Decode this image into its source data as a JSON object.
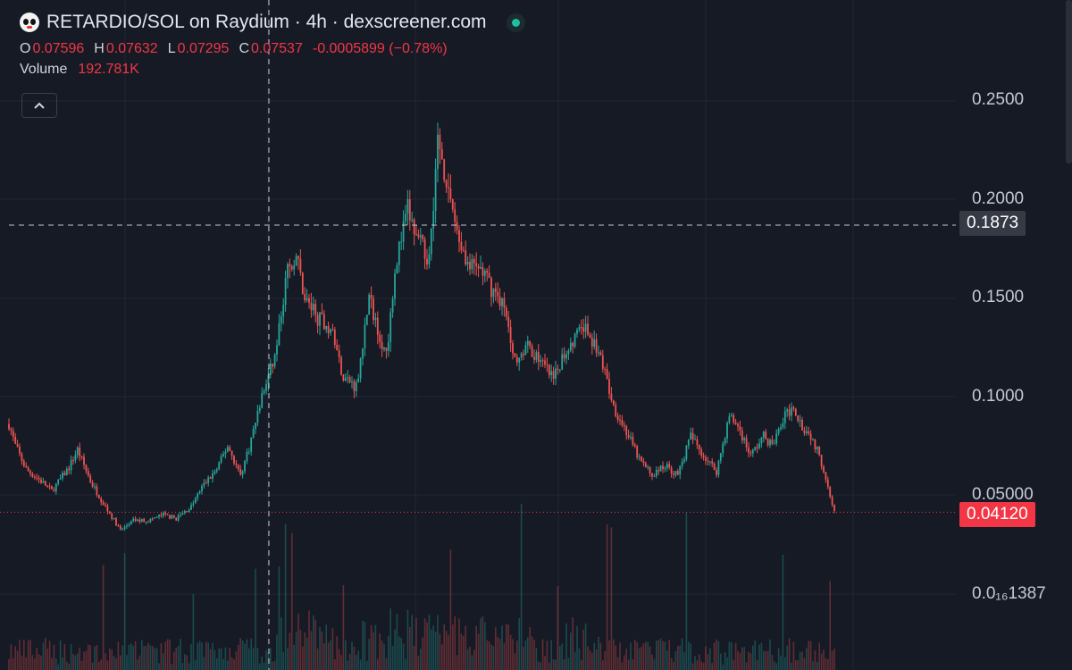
{
  "header": {
    "title": "RETARDIO/SOL on Raydium · 4h · dexscreener.com",
    "logo_icon": "clown-face-icon",
    "status_color": "#1fbfa0"
  },
  "ohlc": {
    "o_label": "O",
    "o_value": "0.07596",
    "h_label": "H",
    "h_value": "0.07632",
    "l_label": "L",
    "l_value": "0.07295",
    "c_label": "C",
    "c_value": "0.07537",
    "change": "-0.0005899 (−0.78%)"
  },
  "volume": {
    "label": "Volume",
    "value": "192.781K"
  },
  "collapse_icon": "chevron-up-icon",
  "price_axis": {
    "labels": [
      "0.2500",
      "0.2000",
      "0.1500",
      "0.1000",
      "0.05000",
      "0.0₁₆1387"
    ],
    "crosshair_price": "0.1873",
    "last_price": "0.04120"
  },
  "colors": {
    "up": "#26a69a",
    "down": "#ef5350",
    "background": "#161a25",
    "last_price": "#f23645"
  },
  "chart_data": {
    "type": "candlestick",
    "pair": "RETARDIO/SOL",
    "timeframe": "4h",
    "price_range": [
      0.0,
      0.25
    ],
    "last_price": 0.0412,
    "crosshair_price": 0.1873,
    "trend_keypoints": [
      [
        0,
        0.086
      ],
      [
        3,
        0.075
      ],
      [
        8,
        0.063
      ],
      [
        15,
        0.057
      ],
      [
        20,
        0.052
      ],
      [
        28,
        0.064
      ],
      [
        32,
        0.073
      ],
      [
        38,
        0.057
      ],
      [
        45,
        0.044
      ],
      [
        52,
        0.032
      ],
      [
        58,
        0.037
      ],
      [
        65,
        0.037
      ],
      [
        72,
        0.04
      ],
      [
        78,
        0.038
      ],
      [
        85,
        0.044
      ],
      [
        90,
        0.054
      ],
      [
        97,
        0.063
      ],
      [
        102,
        0.075
      ],
      [
        108,
        0.06
      ],
      [
        112,
        0.074
      ],
      [
        118,
        0.1
      ],
      [
        124,
        0.12
      ],
      [
        130,
        0.165
      ],
      [
        134,
        0.172
      ],
      [
        138,
        0.15
      ],
      [
        144,
        0.14
      ],
      [
        150,
        0.135
      ],
      [
        156,
        0.11
      ],
      [
        162,
        0.105
      ],
      [
        168,
        0.15
      ],
      [
        172,
        0.135
      ],
      [
        176,
        0.12
      ],
      [
        180,
        0.165
      ],
      [
        186,
        0.195
      ],
      [
        190,
        0.18
      ],
      [
        196,
        0.17
      ],
      [
        200,
        0.23
      ],
      [
        206,
        0.2
      ],
      [
        210,
        0.18
      ],
      [
        215,
        0.165
      ],
      [
        220,
        0.165
      ],
      [
        225,
        0.155
      ],
      [
        230,
        0.148
      ],
      [
        236,
        0.12
      ],
      [
        242,
        0.125
      ],
      [
        248,
        0.118
      ],
      [
        254,
        0.108
      ],
      [
        258,
        0.12
      ],
      [
        264,
        0.13
      ],
      [
        268,
        0.135
      ],
      [
        272,
        0.128
      ],
      [
        276,
        0.12
      ],
      [
        282,
        0.095
      ],
      [
        288,
        0.082
      ],
      [
        294,
        0.068
      ],
      [
        300,
        0.06
      ],
      [
        306,
        0.065
      ],
      [
        312,
        0.06
      ],
      [
        318,
        0.08
      ],
      [
        324,
        0.07
      ],
      [
        330,
        0.062
      ],
      [
        336,
        0.09
      ],
      [
        340,
        0.085
      ],
      [
        346,
        0.07
      ],
      [
        352,
        0.08
      ],
      [
        356,
        0.075
      ],
      [
        362,
        0.09
      ],
      [
        366,
        0.095
      ],
      [
        370,
        0.085
      ],
      [
        374,
        0.08
      ],
      [
        378,
        0.07
      ],
      [
        382,
        0.055
      ],
      [
        385,
        0.042
      ]
    ]
  }
}
